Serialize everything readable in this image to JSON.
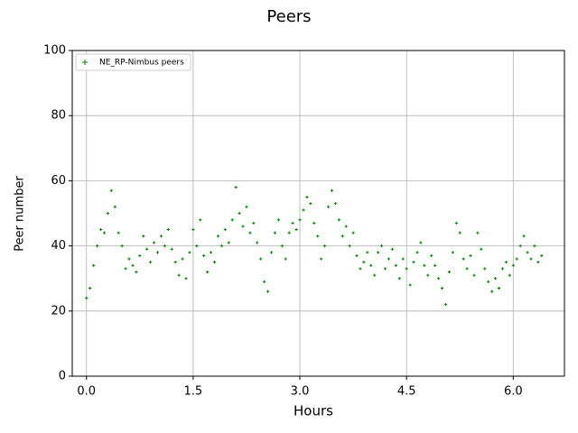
{
  "chart_data": {
    "type": "scatter",
    "title": "Peers",
    "x_label": "Hours",
    "y_label": "Peer number",
    "grid": true,
    "legend_position": "upper-left",
    "xlim": [
      -0.2,
      6.72
    ],
    "ylim": [
      0,
      100
    ],
    "xticks": [
      {
        "value": 0,
        "label": "0.0"
      },
      1.5,
      {
        "value": 3,
        "label": "3.0"
      },
      4.5,
      {
        "value": 6,
        "label": "6.0"
      }
    ],
    "yticks": [
      0,
      20,
      40,
      60,
      80,
      100
    ],
    "series": [
      {
        "name": "NE_RP-Nimbus peers",
        "color": "#008000",
        "x": [
          0,
          0.05,
          0.1,
          0.15,
          0.2,
          0.25,
          0.3,
          0.35,
          0.4,
          0.45,
          0.5,
          0.55,
          0.6,
          0.65,
          0.7,
          0.75,
          0.8,
          0.85,
          0.9,
          0.95,
          1,
          1.05,
          1.1,
          1.15,
          1.2,
          1.25,
          1.3,
          1.35,
          1.4,
          1.45,
          1.5,
          1.55,
          1.6,
          1.65,
          1.7,
          1.75,
          1.8,
          1.85,
          1.9,
          1.95,
          2,
          2.05,
          2.1,
          2.15,
          2.2,
          2.25,
          2.3,
          2.35,
          2.4,
          2.45,
          2.5,
          2.55,
          2.6,
          2.65,
          2.7,
          2.75,
          2.8,
          2.85,
          2.9,
          2.95,
          3,
          3.05,
          3.1,
          3.15,
          3.2,
          3.25,
          3.3,
          3.35,
          3.4,
          3.45,
          3.5,
          3.55,
          3.6,
          3.65,
          3.7,
          3.75,
          3.8,
          3.85,
          3.9,
          3.95,
          4,
          4.05,
          4.1,
          4.15,
          4.2,
          4.25,
          4.3,
          4.35,
          4.4,
          4.45,
          4.5,
          4.55,
          4.6,
          4.65,
          4.7,
          4.75,
          4.8,
          4.85,
          4.9,
          4.95,
          5,
          5.05,
          5.1,
          5.15,
          5.2,
          5.25,
          5.3,
          5.35,
          5.4,
          5.45,
          5.5,
          5.55,
          5.6,
          5.65,
          5.7,
          5.75,
          5.8,
          5.85,
          5.9,
          5.95,
          6,
          6.05,
          6.1,
          6.15,
          6.2,
          6.25,
          6.3,
          6.35,
          6.4
        ],
        "values": [
          24,
          27,
          34,
          40,
          45,
          44,
          50,
          57,
          52,
          44,
          40,
          33,
          36,
          34,
          32,
          37,
          43,
          39,
          35,
          41,
          38,
          43,
          40,
          45,
          39,
          35,
          31,
          36,
          30,
          38,
          45,
          40,
          48,
          37,
          32,
          38,
          35,
          43,
          40,
          45,
          41,
          48,
          58,
          50,
          46,
          52,
          44,
          47,
          41,
          36,
          29,
          26,
          38,
          44,
          48,
          40,
          36,
          44,
          47,
          45,
          48,
          51,
          55,
          53,
          47,
          43,
          36,
          40,
          52,
          57,
          53,
          48,
          43,
          46,
          40,
          44,
          37,
          33,
          35,
          38,
          34,
          31,
          38,
          40,
          33,
          36,
          39,
          34,
          30,
          36,
          33,
          28,
          35,
          38,
          41,
          34,
          31,
          37,
          34,
          30,
          27,
          22,
          32,
          38,
          47,
          44,
          36,
          33,
          37,
          31,
          44,
          39,
          33,
          29,
          26,
          30,
          27,
          33,
          35,
          31,
          34,
          36,
          40,
          43,
          38,
          36,
          40,
          35,
          37
        ]
      }
    ]
  }
}
